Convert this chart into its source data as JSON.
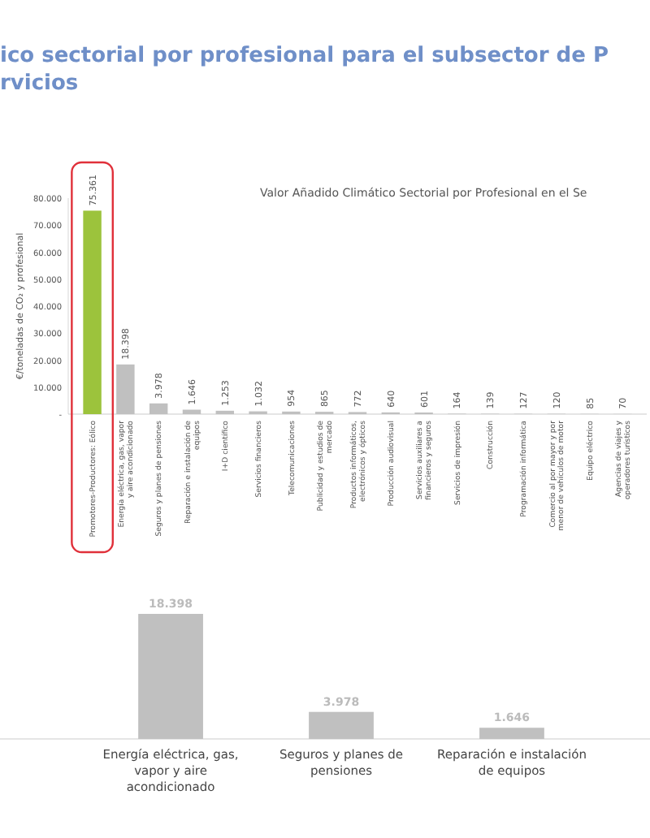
{
  "chart_data": [
    {
      "type": "bar",
      "title": "Valor Añadido Climático Sectorial por Profesional en el Se",
      "subtitle": "ico sectorial por profesional para el subsector de P\nrvicios",
      "ylabel": "€/toneladas de CO₂ y profesional",
      "categories": [
        "Promotores-Productores: Eólico",
        "Energía eléctrica, gas, vapor y aire acondicionado",
        "Seguros y planes de pensiones",
        "Reparación e instalación de equipos",
        "I+D científico",
        "Servicios financieros",
        "Telecomunicaciones",
        "Publicidad y estudios de mercado",
        "Productos informáticos, electrónicos y ópticos",
        "Producción audiovisual",
        "Servicios auxiliares a financieros y seguros",
        "Servicios de impresión",
        "Construcción",
        "Programación informática",
        "Comercio al por mayor y por menor de vehículos de motor",
        "Equipo eléctrico",
        "Agencias de viajes y operadores turísticos"
      ],
      "values": [
        75361,
        18398,
        3978,
        1646,
        1253,
        1032,
        954,
        865,
        772,
        640,
        601,
        164,
        139,
        127,
        120,
        85,
        70
      ],
      "value_labels": [
        "75.361",
        "18.398",
        "3.978",
        "1.646",
        "1.253",
        "1.032",
        "954",
        "865",
        "772",
        "640",
        "601",
        "164",
        "139",
        "127",
        "120",
        "85",
        "70"
      ],
      "colors": [
        "#9cc33c",
        "#c0c0c0",
        "#c0c0c0",
        "#c0c0c0",
        "#c0c0c0",
        "#c0c0c0",
        "#c0c0c0",
        "#c0c0c0",
        "#c0c0c0",
        "#c0c0c0",
        "#c0c0c0",
        "#c0c0c0",
        "#c0c0c0",
        "#c0c0c0",
        "#c0c0c0",
        "#c0c0c0",
        "#c0c0c0"
      ],
      "ylim": [
        0,
        80000
      ],
      "yticks": [
        {
          "value": 0,
          "label": "-"
        },
        {
          "value": 10000,
          "label": "10.000"
        },
        {
          "value": 20000,
          "label": "20.000"
        },
        {
          "value": 30000,
          "label": "30.000"
        },
        {
          "value": 40000,
          "label": "40.000"
        },
        {
          "value": 50000,
          "label": "50.000"
        },
        {
          "value": 60000,
          "label": "60.000"
        },
        {
          "value": 70000,
          "label": "70.000"
        },
        {
          "value": 80000,
          "label": "80.000"
        }
      ]
    },
    {
      "type": "bar",
      "categories": [
        "Energía eléctrica, gas, vapor y aire acondicionado",
        "Seguros y planes de pensiones",
        "Reparación e instalación de equipos"
      ],
      "values": [
        18398,
        3978,
        1646
      ],
      "value_labels": [
        "18.398",
        "3.978",
        "1.646"
      ],
      "color": "#c0c0c0"
    }
  ]
}
